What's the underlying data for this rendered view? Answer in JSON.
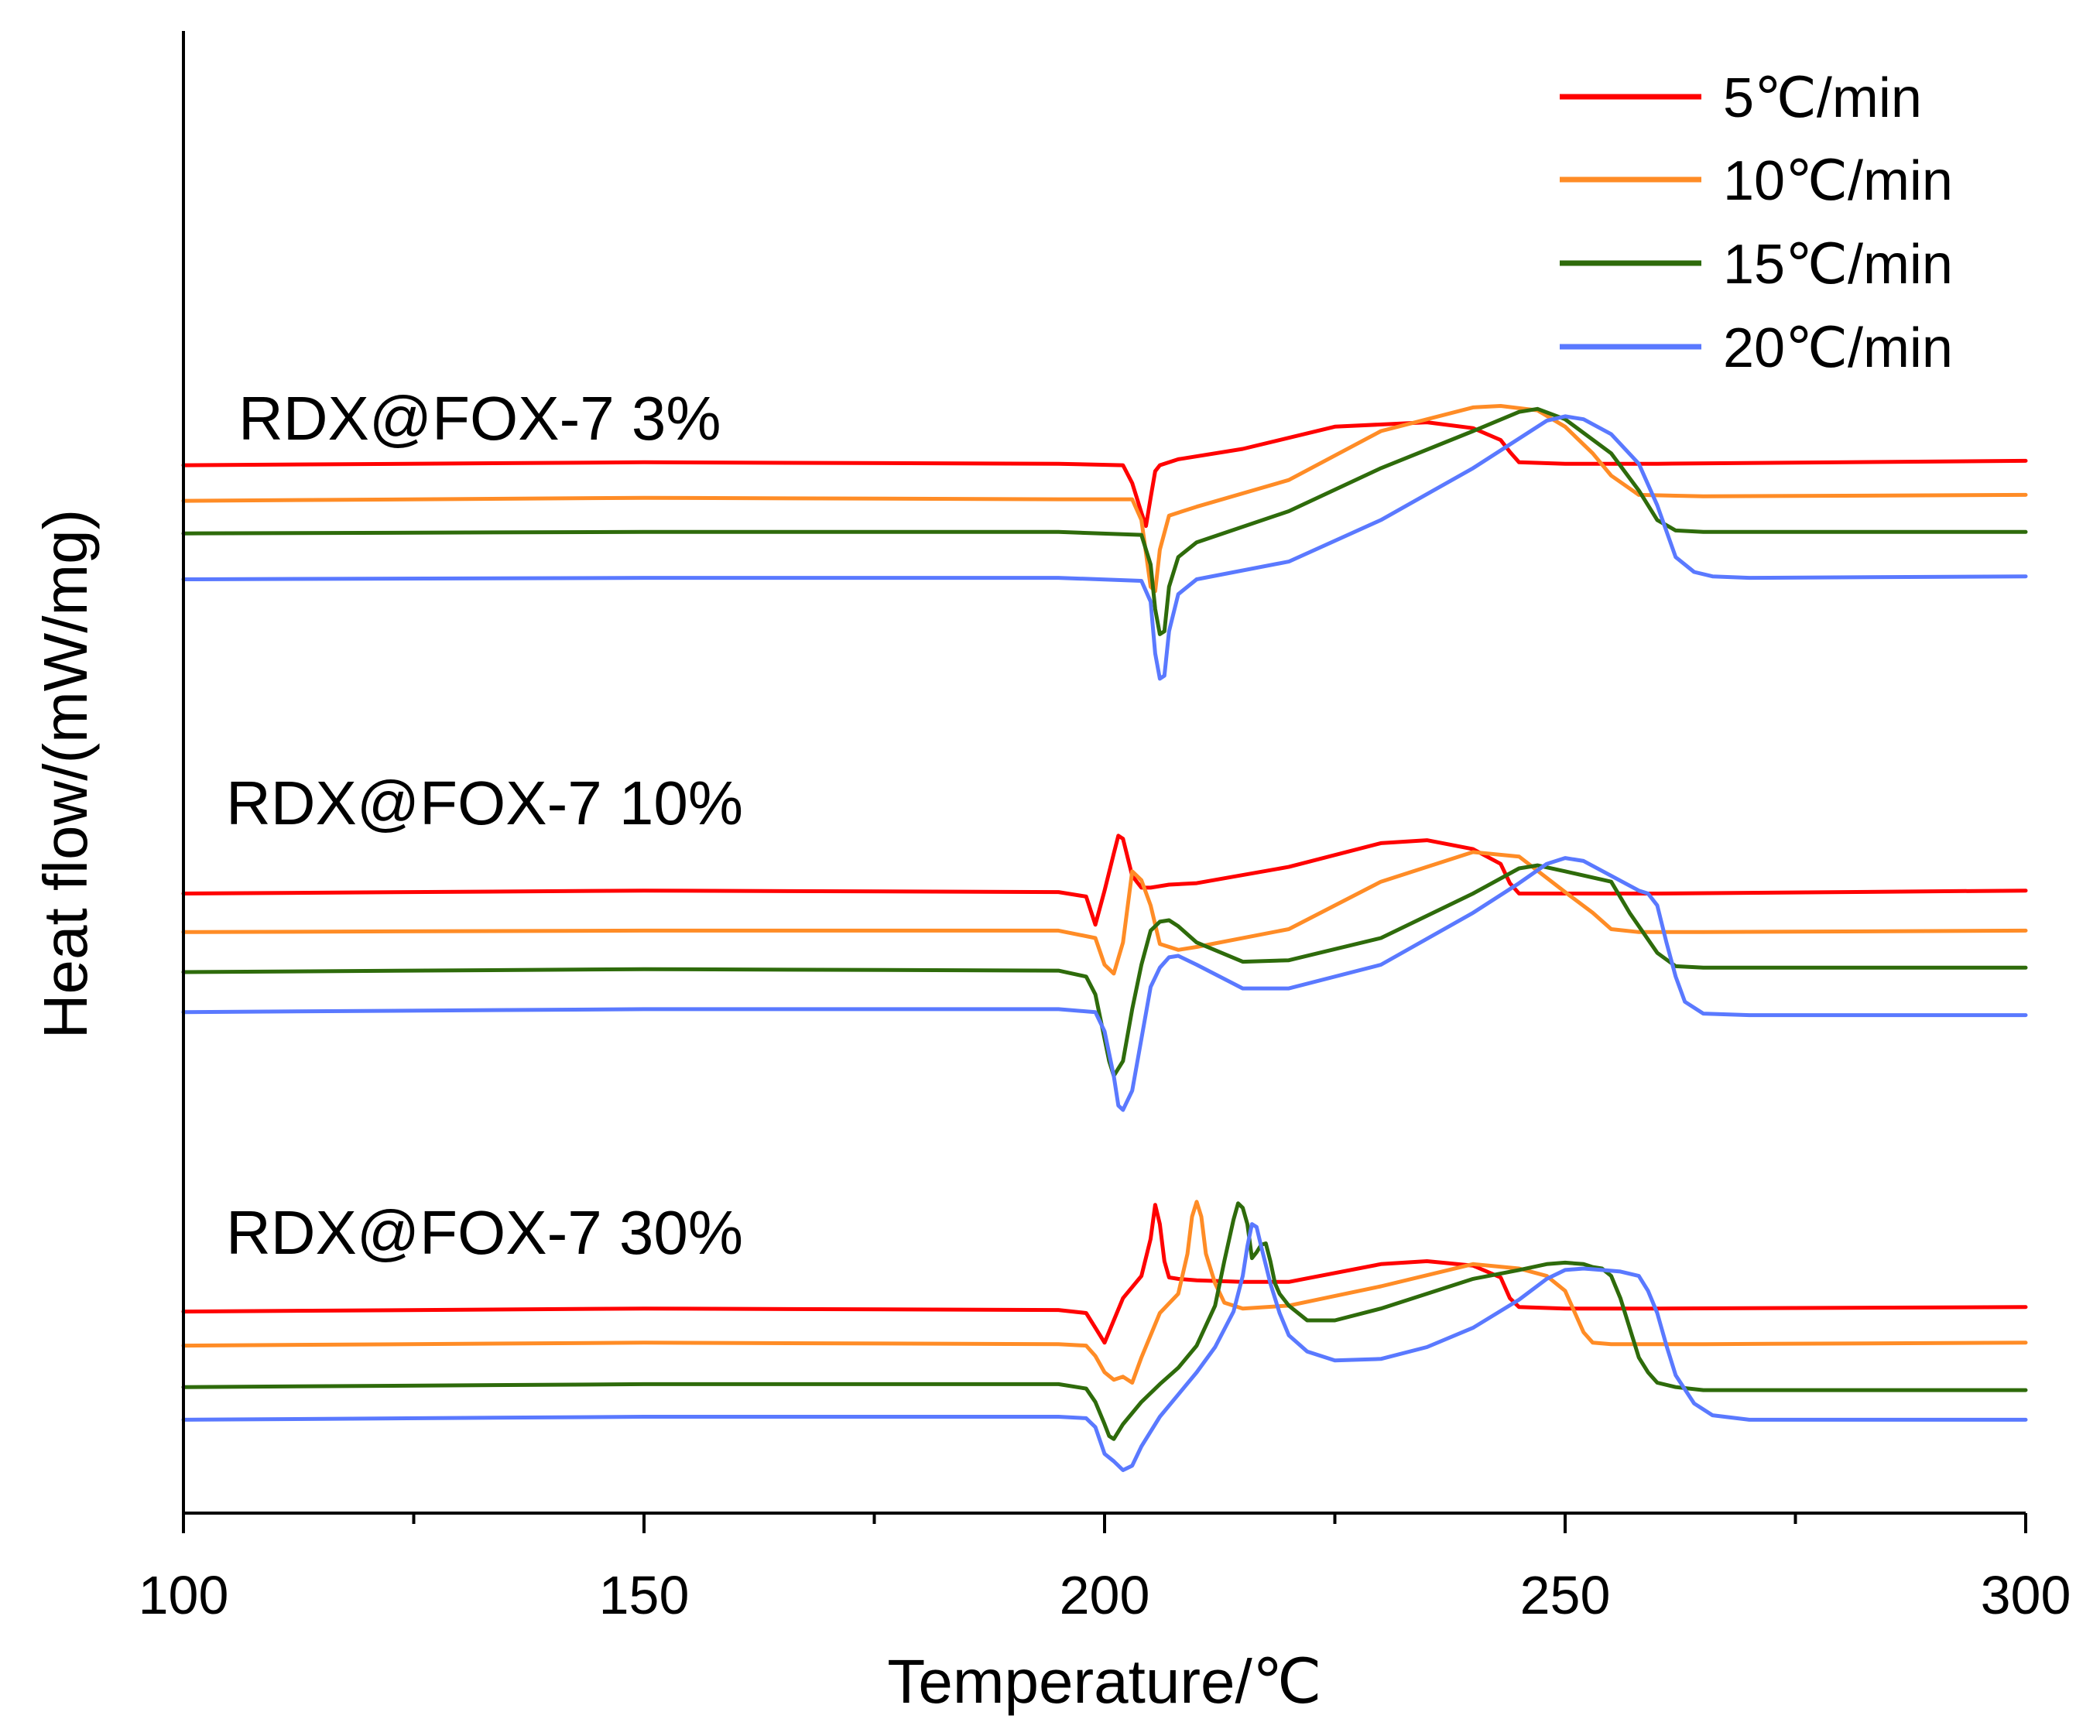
{
  "chart_data": {
    "type": "line",
    "title": "",
    "xlabel": "Temperature/℃",
    "ylabel": "Heat flow/(mW/mg)",
    "xlim": [
      100,
      300
    ],
    "ylim": [
      0,
      100
    ],
    "xticks": [
      100,
      150,
      200,
      250,
      300
    ],
    "xtick_labels": [
      "100",
      "150",
      "200",
      "250",
      "300"
    ],
    "x_minor_step": 25,
    "grid": false,
    "legend_position": "top-right",
    "legend": [
      {
        "name": "5℃/min",
        "color": "#ff0000"
      },
      {
        "name": "10℃/min",
        "color": "#ff8c26"
      },
      {
        "name": "15℃/min",
        "color": "#2e6b0b"
      },
      {
        "name": "20℃/min",
        "color": "#5a79ff"
      }
    ],
    "groups": [
      {
        "label": "RDX@FOX-7 3%",
        "series": [
          {
            "name": "5℃/min",
            "x": [
              100,
              150,
              195,
              202,
              203,
              204,
              204.5,
              205,
              205.5,
              206,
              208,
              215,
              225,
              235,
              240,
              243,
              244,
              245,
              250,
              260,
              300
            ],
            "y": [
              70.7,
              70.9,
              70.8,
              70.7,
              69.5,
              67.5,
              66.6,
              68.5,
              70.3,
              70.7,
              71.1,
              71.8,
              73.3,
              73.6,
              73.2,
              72.4,
              71.6,
              70.9,
              70.8,
              70.8,
              71.0
            ]
          },
          {
            "name": "10℃/min",
            "x": [
              100,
              150,
              195,
              203,
              204,
              205,
              205.5,
              206,
              207,
              210,
              220,
              230,
              240,
              243,
              247,
              250,
              253,
              255,
              258,
              265,
              300
            ],
            "y": [
              68.3,
              68.5,
              68.4,
              68.4,
              67.0,
              62.5,
              62.2,
              65.0,
              67.3,
              67.9,
              69.7,
              73.0,
              74.6,
              74.7,
              74.4,
              73.3,
              71.5,
              70.0,
              68.7,
              68.6,
              68.7
            ]
          },
          {
            "name": "15℃/min",
            "x": [
              100,
              150,
              195,
              204,
              205,
              205.5,
              206,
              206.5,
              207,
              208,
              210,
              220,
              230,
              240,
              245,
              247,
              250,
              255,
              258,
              260,
              262,
              265,
              300
            ],
            "y": [
              66.1,
              66.2,
              66.2,
              66.0,
              64.0,
              61.0,
              59.3,
              59.5,
              62.5,
              64.5,
              65.5,
              67.6,
              70.5,
              73.0,
              74.3,
              74.5,
              73.8,
              71.5,
              69.0,
              67.0,
              66.3,
              66.2,
              66.2
            ]
          },
          {
            "name": "20℃/min",
            "x": [
              100,
              150,
              195,
              204,
              205,
              205.5,
              206,
              206.5,
              207,
              208,
              210,
              220,
              230,
              240,
              245,
              248,
              250,
              252,
              255,
              258,
              260,
              262,
              264,
              266,
              270,
              300
            ],
            "y": [
              63.0,
              63.1,
              63.1,
              62.9,
              61.5,
              58.0,
              56.3,
              56.5,
              59.5,
              62.0,
              63.0,
              64.2,
              67.0,
              70.5,
              72.5,
              73.7,
              74.0,
              73.8,
              72.8,
              70.8,
              68.0,
              64.5,
              63.5,
              63.2,
              63.1,
              63.2
            ]
          }
        ]
      },
      {
        "label": "RDX@FOX-7 10%",
        "series": [
          {
            "name": "5℃/min",
            "x": [
              100,
              150,
              195,
              198,
              199,
              200,
              201,
              201.5,
              202,
              203,
              204,
              205,
              207,
              210,
              220,
              230,
              235,
              240,
              243,
              244,
              245,
              250,
              260,
              300
            ],
            "y": [
              41.8,
              42.0,
              41.9,
              41.6,
              39.7,
              42.0,
              44.5,
              45.7,
              45.5,
              43.0,
              42.2,
              42.2,
              42.4,
              42.5,
              43.6,
              45.2,
              45.4,
              44.8,
              43.8,
              42.5,
              41.8,
              41.8,
              41.8,
              42.0
            ]
          },
          {
            "name": "10℃/min",
            "x": [
              100,
              150,
              195,
              199,
              200,
              201,
              202,
              203,
              204,
              205,
              206,
              208,
              210,
              220,
              230,
              240,
              245,
              250,
              253,
              255,
              258,
              265,
              300
            ],
            "y": [
              39.2,
              39.3,
              39.3,
              38.8,
              37.0,
              36.4,
              38.5,
              43.3,
              42.7,
              41.0,
              38.4,
              38.0,
              38.2,
              39.4,
              42.6,
              44.6,
              44.3,
              41.9,
              40.5,
              39.4,
              39.2,
              39.2,
              39.3
            ]
          },
          {
            "name": "15℃/min",
            "x": [
              100,
              150,
              195,
              198,
              199,
              200,
              200.5,
              201,
              202,
              203,
              204,
              205,
              206,
              207,
              208,
              210,
              215,
              220,
              230,
              240,
              245,
              247,
              250,
              255,
              257,
              260,
              262,
              265,
              300
            ],
            "y": [
              36.5,
              36.7,
              36.6,
              36.2,
              35.0,
              32.0,
              30.5,
              29.5,
              30.5,
              34.0,
              37.0,
              39.3,
              39.9,
              40.0,
              39.6,
              38.5,
              37.2,
              37.3,
              38.8,
              41.8,
              43.5,
              43.7,
              43.3,
              42.6,
              40.5,
              37.8,
              36.9,
              36.8,
              36.8
            ]
          },
          {
            "name": "20℃/min",
            "x": [
              100,
              150,
              195,
              199,
              200,
              201,
              201.5,
              202,
              203,
              204,
              205,
              206,
              207,
              208,
              210,
              215,
              220,
              230,
              240,
              245,
              248,
              250,
              252,
              255,
              258,
              259,
              260,
              261,
              262,
              263,
              265,
              270,
              300
            ],
            "y": [
              33.8,
              34.0,
              34.0,
              33.8,
              32.5,
              29.5,
              27.5,
              27.2,
              28.5,
              32.0,
              35.5,
              36.8,
              37.5,
              37.6,
              37.0,
              35.4,
              35.4,
              37.0,
              40.5,
              42.5,
              43.8,
              44.2,
              44.0,
              43.0,
              42.0,
              41.8,
              41.0,
              38.5,
              36.2,
              34.5,
              33.7,
              33.6,
              33.6
            ]
          }
        ]
      },
      {
        "label": "RDX@FOX-7 30%",
        "series": [
          {
            "name": "5℃/min",
            "x": [
              100,
              150,
              195,
              198,
              199,
              200,
              201,
              202,
              204,
              205,
              205.5,
              206,
              206.5,
              207,
              208,
              210,
              215,
              220,
              230,
              235,
              240,
              243,
              244,
              245,
              250,
              260,
              300
            ],
            "y": [
              13.6,
              13.8,
              13.7,
              13.5,
              12.5,
              11.5,
              13.0,
              14.5,
              16.0,
              18.5,
              20.8,
              19.5,
              17.0,
              15.9,
              15.8,
              15.7,
              15.6,
              15.6,
              16.8,
              17.0,
              16.7,
              15.9,
              14.5,
              13.9,
              13.8,
              13.8,
              13.9
            ]
          },
          {
            "name": "10℃/min",
            "x": [
              100,
              150,
              195,
              198,
              199,
              200,
              201,
              202,
              203,
              204,
              206,
              208,
              209,
              209.5,
              210,
              210.5,
              211,
              212,
              213,
              215,
              220,
              230,
              240,
              245,
              248,
              250,
              251,
              252,
              253,
              255,
              258,
              265,
              300
            ],
            "y": [
              11.3,
              11.5,
              11.4,
              11.3,
              10.6,
              9.5,
              9.0,
              9.2,
              8.8,
              10.5,
              13.5,
              14.8,
              17.5,
              20.0,
              21.0,
              20.0,
              17.5,
              15.5,
              14.2,
              13.8,
              14.0,
              15.3,
              16.8,
              16.5,
              16.0,
              15.0,
              13.6,
              12.2,
              11.5,
              11.4,
              11.4,
              11.4,
              11.5
            ]
          },
          {
            "name": "15℃/min",
            "x": [
              100,
              150,
              195,
              198,
              199,
              200,
              200.5,
              201,
              202,
              204,
              206,
              208,
              210,
              212,
              213,
              214,
              214.5,
              215,
              215.5,
              216,
              216.5,
              217,
              217.5,
              218,
              218.5,
              219,
              220,
              222,
              225,
              230,
              240,
              245,
              248,
              250,
              252,
              253,
              254,
              255,
              256,
              257,
              258,
              259,
              260,
              262,
              265,
              300
            ],
            "y": [
              8.5,
              8.7,
              8.7,
              8.4,
              7.5,
              6.0,
              5.2,
              5.0,
              6.0,
              7.5,
              8.7,
              9.8,
              11.3,
              14.0,
              17.0,
              19.8,
              20.9,
              20.6,
              19.5,
              17.2,
              17.6,
              18.1,
              18.2,
              17.0,
              15.5,
              14.8,
              14.0,
              13.0,
              13.0,
              13.8,
              15.8,
              16.4,
              16.8,
              16.9,
              16.8,
              16.6,
              16.5,
              16.0,
              14.5,
              12.5,
              10.5,
              9.5,
              8.8,
              8.5,
              8.3,
              8.3
            ]
          },
          {
            "name": "20℃/min",
            "x": [
              100,
              150,
              195,
              198,
              199,
              200,
              201,
              202,
              203,
              204,
              206,
              208,
              210,
              212,
              214,
              215,
              215.5,
              216,
              216.5,
              217,
              218,
              219,
              220,
              222,
              225,
              230,
              235,
              240,
              245,
              248,
              250,
              252,
              254,
              256,
              258,
              259,
              260,
              261,
              262,
              264,
              266,
              270,
              300
            ],
            "y": [
              6.3,
              6.5,
              6.5,
              6.4,
              5.8,
              4.0,
              3.5,
              2.9,
              3.2,
              4.5,
              6.5,
              8.0,
              9.5,
              11.2,
              13.6,
              16.0,
              18.0,
              19.5,
              19.3,
              18.0,
              15.5,
              13.5,
              12.0,
              10.9,
              10.3,
              10.4,
              11.2,
              12.5,
              14.4,
              15.8,
              16.4,
              16.5,
              16.4,
              16.3,
              16.0,
              15.0,
              13.5,
              11.3,
              9.3,
              7.4,
              6.6,
              6.3,
              6.3
            ]
          }
        ]
      }
    ]
  }
}
